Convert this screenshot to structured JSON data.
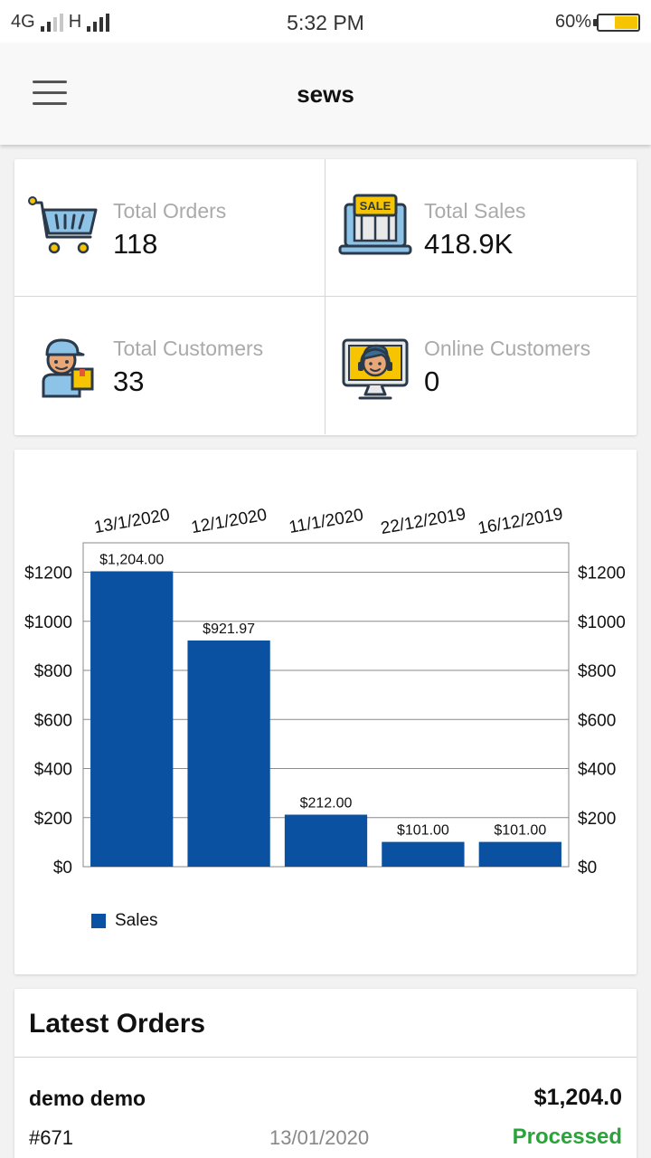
{
  "status_bar": {
    "network": "4G",
    "network2": "H",
    "time": "5:32 PM",
    "battery": "60%",
    "battery_level": 0.6,
    "battery_color": "#f6c400"
  },
  "app_bar": {
    "title": "sews",
    "menu_icon": "hamburger-menu-icon"
  },
  "stats": [
    {
      "label": "Total Orders",
      "value": "118",
      "icon": "shopping-cart-icon"
    },
    {
      "label": "Total Sales",
      "value": "418.9K",
      "icon": "sale-laptop-icon"
    },
    {
      "label": "Total Customers",
      "value": "33",
      "icon": "delivery-customer-icon"
    },
    {
      "label": "Online Customers",
      "value": "0",
      "icon": "support-monitor-icon"
    }
  ],
  "chart_data": {
    "type": "bar",
    "categories": [
      "13/1/2020",
      "12/1/2020",
      "11/1/2020",
      "22/12/2019",
      "16/12/2019"
    ],
    "series": [
      {
        "name": "Sales",
        "values": [
          1204.0,
          921.97,
          212.0,
          101.0,
          101.0
        ],
        "color": "#0a52a1"
      }
    ],
    "data_labels": [
      "$1,204.00",
      "$921.97",
      "$212.00",
      "$101.00",
      "$101.00"
    ],
    "y_ticks": [
      0,
      200,
      400,
      600,
      800,
      1000,
      1200
    ],
    "y_tick_labels": [
      "$0",
      "$200",
      "$400",
      "$600",
      "$800",
      "$1000",
      "$1200"
    ],
    "ylim": [
      0,
      1320
    ],
    "grid": true,
    "legend": "bottom-left",
    "axis_position": "categories-top"
  },
  "latest_orders": {
    "title": "Latest Orders",
    "rows": [
      {
        "name": "demo demo",
        "amount": "$1,204.0",
        "id": "#671",
        "date": "13/01/2020",
        "status": "Processed",
        "status_color": "#2aa33a"
      }
    ]
  }
}
